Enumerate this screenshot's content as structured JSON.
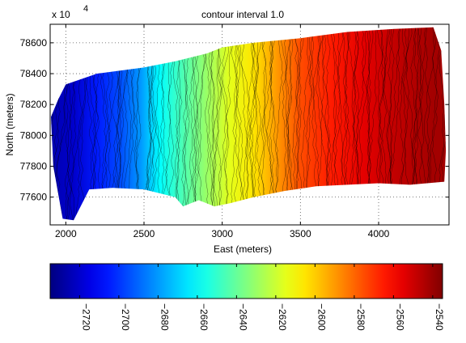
{
  "chart_data": [
    {
      "type": "heatmap",
      "title": "contour interval 1.0",
      "xlabel": "East (meters)",
      "ylabel": "North (meters)",
      "y_exponent_label": "x 10",
      "y_exponent_power": "4",
      "xlim": [
        1900,
        4450
      ],
      "ylim": [
        77420,
        78720
      ],
      "x_ticks": [
        2000,
        2500,
        3000,
        3500,
        4000
      ],
      "y_ticks": [
        77600,
        77800,
        78000,
        78200,
        78400,
        78600
      ],
      "x_tick_labels": [
        "2000",
        "2500",
        "3000",
        "3500",
        "4000"
      ],
      "y_tick_labels": [
        "77600",
        "77800",
        "78000",
        "78200",
        "78400",
        "78600"
      ],
      "grid": true,
      "colormap": "jet",
      "color_range": [
        -2735,
        -2535
      ],
      "contour_interval": 1.0,
      "depth_profile": [
        {
          "x": 1920,
          "value": -2725
        },
        {
          "x": 2050,
          "value": -2720
        },
        {
          "x": 2200,
          "value": -2705
        },
        {
          "x": 2350,
          "value": -2695
        },
        {
          "x": 2480,
          "value": -2680
        },
        {
          "x": 2600,
          "value": -2660
        },
        {
          "x": 2750,
          "value": -2645
        },
        {
          "x": 2900,
          "value": -2630
        },
        {
          "x": 3050,
          "value": -2615
        },
        {
          "x": 3200,
          "value": -2605
        },
        {
          "x": 3350,
          "value": -2590
        },
        {
          "x": 3500,
          "value": -2575
        },
        {
          "x": 3700,
          "value": -2565
        },
        {
          "x": 3900,
          "value": -2555
        },
        {
          "x": 4100,
          "value": -2548
        },
        {
          "x": 4350,
          "value": -2542
        }
      ],
      "survey_outline": [
        {
          "x": 1905,
          "y": 78120
        },
        {
          "x": 1950,
          "y": 78230
        },
        {
          "x": 2000,
          "y": 78330
        },
        {
          "x": 2200,
          "y": 78400
        },
        {
          "x": 2500,
          "y": 78440
        },
        {
          "x": 2700,
          "y": 78480
        },
        {
          "x": 2900,
          "y": 78530
        },
        {
          "x": 3000,
          "y": 78570
        },
        {
          "x": 3200,
          "y": 78600
        },
        {
          "x": 3500,
          "y": 78630
        },
        {
          "x": 3800,
          "y": 78670
        },
        {
          "x": 4100,
          "y": 78690
        },
        {
          "x": 4350,
          "y": 78700
        },
        {
          "x": 4400,
          "y": 78550
        },
        {
          "x": 4420,
          "y": 78200
        },
        {
          "x": 4430,
          "y": 77900
        },
        {
          "x": 4420,
          "y": 77700
        },
        {
          "x": 4200,
          "y": 77680
        },
        {
          "x": 4000,
          "y": 77690
        },
        {
          "x": 3800,
          "y": 77680
        },
        {
          "x": 3600,
          "y": 77670
        },
        {
          "x": 3400,
          "y": 77640
        },
        {
          "x": 3200,
          "y": 77600
        },
        {
          "x": 3050,
          "y": 77560
        },
        {
          "x": 2950,
          "y": 77540
        },
        {
          "x": 2850,
          "y": 77580
        },
        {
          "x": 2800,
          "y": 77560
        },
        {
          "x": 2750,
          "y": 77540
        },
        {
          "x": 2700,
          "y": 77600
        },
        {
          "x": 2500,
          "y": 77650
        },
        {
          "x": 2300,
          "y": 77660
        },
        {
          "x": 2150,
          "y": 77650
        },
        {
          "x": 2050,
          "y": 77450
        },
        {
          "x": 1980,
          "y": 77460
        },
        {
          "x": 1920,
          "y": 77800
        }
      ]
    },
    {
      "type": "colorbar",
      "colormap": "jet",
      "range": [
        -2735,
        -2535
      ],
      "ticks": [
        -2720,
        -2700,
        -2680,
        -2660,
        -2640,
        -2620,
        -2600,
        -2580,
        -2560,
        -2540
      ],
      "tick_labels": [
        "−2720",
        "−2700",
        "−2680",
        "−2660",
        "−2640",
        "−2620",
        "−2600",
        "−2580",
        "−2560",
        "−2540"
      ]
    }
  ]
}
